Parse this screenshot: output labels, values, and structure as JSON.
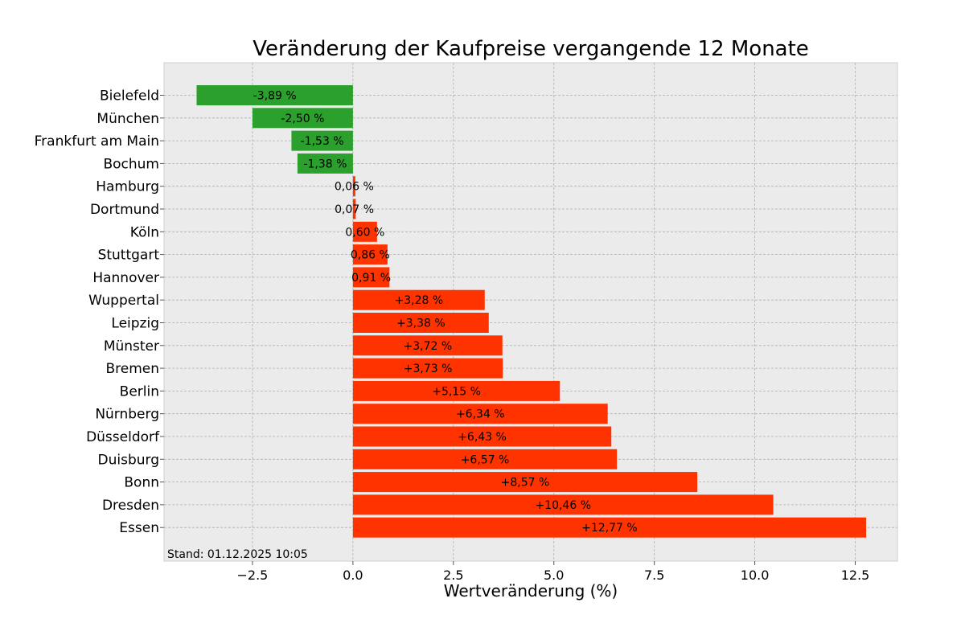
{
  "chart_data": {
    "type": "bar",
    "orientation": "horizontal",
    "title": "Veränderung der Kaufpreise vergangende 12 Monate",
    "xlabel": "Wertveränderung (%)",
    "ylabel": "",
    "xlim": [
      -4.7,
      13.55
    ],
    "xticks": [
      -2.5,
      0.0,
      2.5,
      5.0,
      7.5,
      10.0,
      12.5
    ],
    "xtick_labels": [
      "−2.5",
      "0.0",
      "2.5",
      "5.0",
      "7.5",
      "10.0",
      "12.5"
    ],
    "grid": true,
    "categories": [
      "Bielefeld",
      "München",
      "Frankfurt am Main",
      "Bochum",
      "Hamburg",
      "Dortmund",
      "Köln",
      "Stuttgart",
      "Hannover",
      "Wuppertal",
      "Leipzig",
      "Münster",
      "Bremen",
      "Berlin",
      "Nürnberg",
      "Düsseldorf",
      "Duisburg",
      "Bonn",
      "Dresden",
      "Essen"
    ],
    "values": [
      -3.89,
      -2.5,
      -1.53,
      -1.38,
      0.06,
      0.07,
      0.6,
      0.86,
      0.91,
      3.28,
      3.38,
      3.72,
      3.73,
      5.15,
      6.34,
      6.43,
      6.57,
      8.57,
      10.46,
      12.77
    ],
    "value_labels": [
      "-3,89 %",
      "-2,50 %",
      "-1,53 %",
      "-1,38 %",
      "0,06 %",
      "0,07 %",
      "0,60 %",
      "0,86 %",
      "0,91 %",
      "+3,28 %",
      "+3,38 %",
      "+3,72 %",
      "+3,73 %",
      "+5,15 %",
      "+6,34 %",
      "+6,43 %",
      "+6,57 %",
      "+8,57 %",
      "+10,46 %",
      "+12,77 %"
    ],
    "colors": {
      "negative": "#2ca02c",
      "positive": "#ff3300",
      "background": "#ebebeb",
      "grid": "#b0b0b0"
    },
    "annotation": "Stand: 01.12.2025 10:05"
  }
}
